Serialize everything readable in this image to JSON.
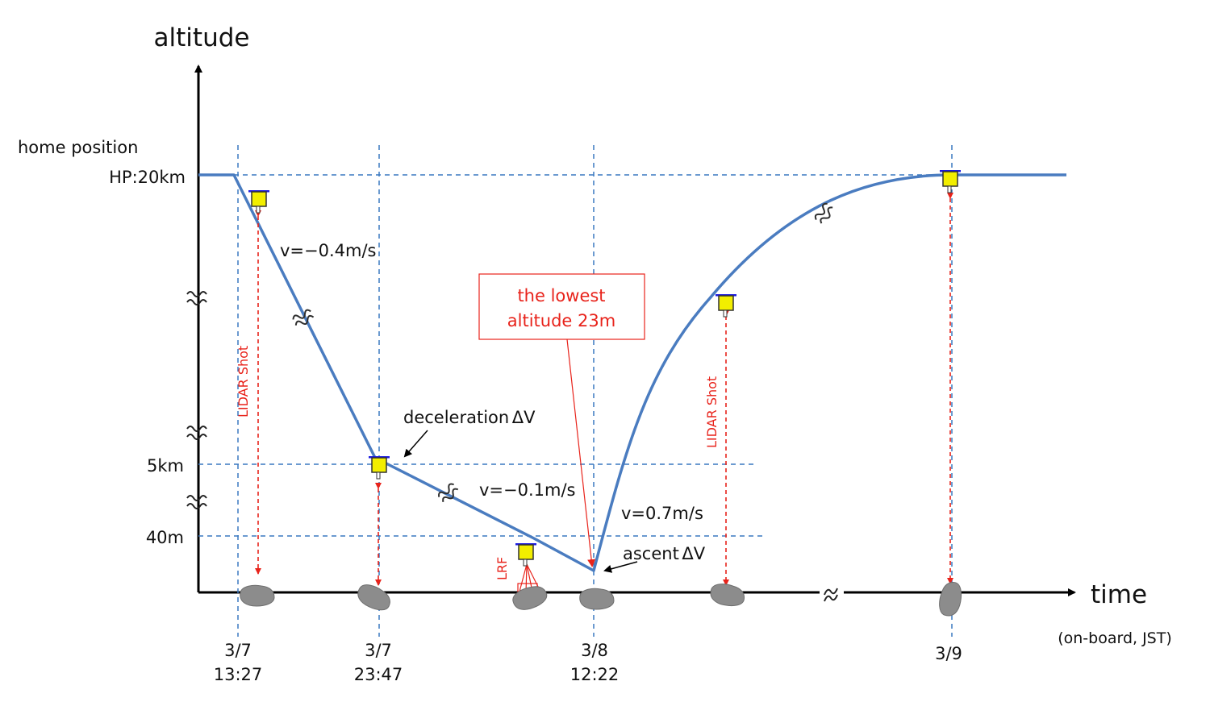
{
  "axes": {
    "y_title": "altitude",
    "x_title": "time",
    "x_note": "(on-board, JST)"
  },
  "y_labels": {
    "home_caption": "home position",
    "hp": "HP:20km",
    "five_km": "5km",
    "forty_m": "40m"
  },
  "x_labels": [
    {
      "date": "3/7",
      "time": "13:27"
    },
    {
      "date": "3/7",
      "time": "23:47"
    },
    {
      "date": "3/8",
      "time": "12:22"
    },
    {
      "date": "3/9",
      "time": ""
    }
  ],
  "annotations": {
    "v_descent": "v=−0.4m/s",
    "v_slow": "v=−0.1m/s",
    "v_ascent": "v=0.7m/s",
    "deceleration": "deceleration ΔV",
    "ascent": "ascent ΔV",
    "lowest_line1": "the lowest",
    "lowest_line2": "altitude 23m",
    "lidar_left": "LIDAR Shot",
    "lidar_right": "LIDAR Shot",
    "lrf": "LRF"
  },
  "colors": {
    "trajectory": "#4a7cc0",
    "guide": "#3a78c0",
    "shot": "#e8231b",
    "spacecraft": "#f2ee00",
    "panel": "#1a1ae0",
    "asteroid": "#8c8c8c"
  }
}
